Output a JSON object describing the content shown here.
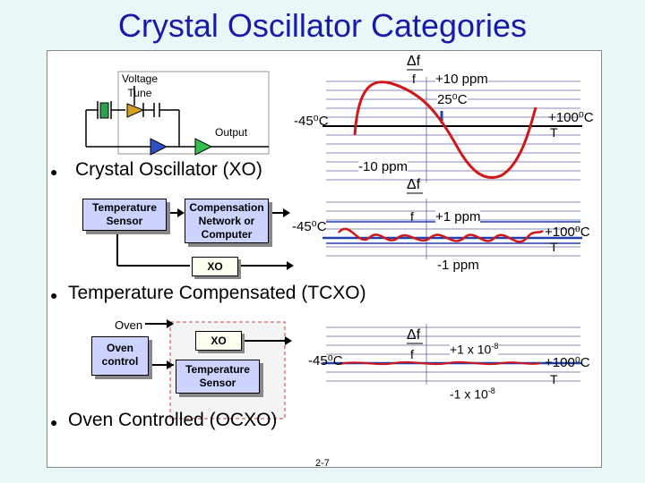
{
  "title": "Crystal Oscillator Categories",
  "sections": [
    {
      "bullet": "●",
      "label": "Crystal Oscillator (XO)"
    },
    {
      "bullet": "●",
      "label": "Temperature Compensated (TCXO)"
    },
    {
      "bullet": "●",
      "label": "Oven Controlled (OCXO)"
    }
  ],
  "xo": {
    "voltage_tune": "Voltage Tune",
    "output": "Output",
    "df": "Δf",
    "f": "f",
    "upper": "+10 ppm",
    "lower": "-10 ppm",
    "temp_mid": "25⁰C",
    "temp_left": "-45⁰C",
    "temp_right": "+100⁰C",
    "temp_axis": "T"
  },
  "tcxo": {
    "temp_sensor": "Temperature Sensor",
    "compensation": "Compensation Network or Computer",
    "xo": "XO",
    "df": "Δf",
    "f": "f",
    "upper": "+1 ppm",
    "lower": "-1 ppm",
    "temp_left": "-45⁰C",
    "temp_right": "+100⁰C",
    "temp_axis": "T"
  },
  "ocxo": {
    "oven": "Oven",
    "oven_control": "Oven control",
    "xo": "XO",
    "temp_sensor": "Temperature Sensor",
    "df": "Δf",
    "f": "f",
    "upper": "+1 x 10",
    "upper_exp": "-8",
    "lower": "-1 x 10",
    "lower_exp": "-8",
    "temp_left": "-45⁰C",
    "temp_right": "+100⁰C",
    "temp_axis": "T"
  },
  "page_number": "2-7",
  "colors": {
    "title": "#1a1aa8",
    "curve": "#d01818",
    "line": "#2040b0",
    "box": "#ccd3ff",
    "triangle_yellow": "#d8a020",
    "triangle_blue": "#3050c0",
    "triangle_green": "#30c050"
  }
}
